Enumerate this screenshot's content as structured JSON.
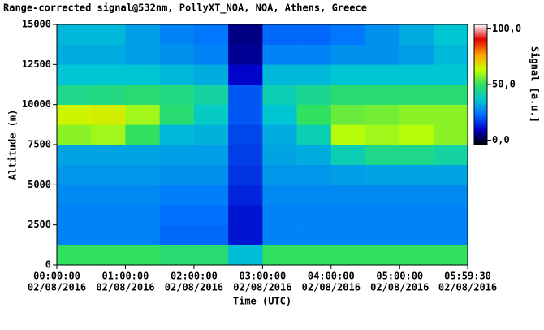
{
  "chart_data": {
    "type": "heatmap",
    "title": "Range-corrected signal@532nm, PollyXT_NOA, NOA, Athens, Greece",
    "x_label": "Time (UTC)",
    "y_label": "Altitude (m)",
    "colorbar_label": "Signal [a.u.]",
    "x_date": "02/08/2016",
    "xlim": [
      0,
      5.9917
    ],
    "xticks": [
      {
        "value": 0,
        "label": "00:00:00"
      },
      {
        "value": 1,
        "label": "01:00:00"
      },
      {
        "value": 2,
        "label": "02:00:00"
      },
      {
        "value": 3,
        "label": "03:00:00"
      },
      {
        "value": 4,
        "label": "04:00:00"
      },
      {
        "value": 5,
        "label": "05:00:00"
      },
      {
        "value": 5.9917,
        "label": "05:59:30"
      }
    ],
    "ylim": [
      0,
      15000
    ],
    "yticks": [
      0,
      2500,
      5000,
      7500,
      10000,
      12500,
      15000
    ],
    "clim": [
      -4,
      104
    ],
    "cticks": [
      {
        "value": 0,
        "label": "0,0"
      },
      {
        "value": 50,
        "label": "50,0"
      },
      {
        "value": 100,
        "label": "100,0"
      }
    ],
    "colormap": [
      "#000000",
      "#0000c8",
      "#0070ff",
      "#00c8d0",
      "#30e060",
      "#c8ff00",
      "#ffa000",
      "#e00000",
      "#ffffff"
    ],
    "x_bins": [
      0,
      0.5,
      1,
      1.5,
      2,
      2.5,
      3,
      3.5,
      4,
      4.5,
      5,
      5.5,
      5.9917
    ],
    "y_bins": [
      0,
      1250,
      2500,
      3750,
      5000,
      6250,
      7500,
      8750,
      10000,
      11250,
      12500,
      13750,
      15000
    ],
    "z": [
      [
        50,
        50,
        50,
        48,
        48,
        35,
        50,
        50,
        50,
        50,
        50,
        50
      ],
      [
        26,
        26,
        26,
        22,
        22,
        12,
        26,
        26,
        26,
        26,
        26,
        26
      ],
      [
        26,
        26,
        26,
        23,
        23,
        12,
        26,
        26,
        26,
        26,
        26,
        26
      ],
      [
        27,
        27,
        27,
        25,
        25,
        14,
        27,
        27,
        27,
        27,
        27,
        27
      ],
      [
        29,
        29,
        29,
        28,
        28,
        16,
        29,
        29,
        30,
        31,
        31,
        31
      ],
      [
        31,
        31,
        31,
        30,
        30,
        17,
        31,
        32,
        40,
        45,
        45,
        42
      ],
      [
        58,
        60,
        50,
        34,
        33,
        18,
        32,
        40,
        62,
        60,
        62,
        58
      ],
      [
        65,
        66,
        60,
        48,
        38,
        20,
        36,
        50,
        55,
        56,
        58,
        58
      ],
      [
        45,
        46,
        48,
        46,
        42,
        20,
        40,
        44,
        48,
        48,
        48,
        48
      ],
      [
        36,
        36,
        36,
        34,
        32,
        10,
        34,
        34,
        36,
        36,
        36,
        36
      ],
      [
        32,
        32,
        30,
        28,
        26,
        6,
        26,
        26,
        28,
        28,
        30,
        34
      ],
      [
        34,
        34,
        30,
        26,
        24,
        5,
        22,
        22,
        24,
        28,
        32,
        36
      ]
    ]
  }
}
